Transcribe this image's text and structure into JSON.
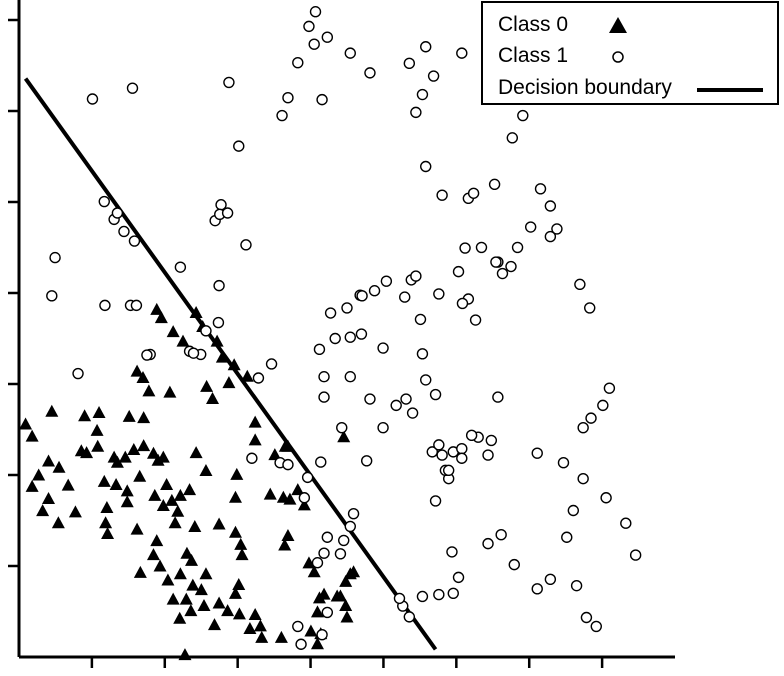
{
  "chart_data": {
    "type": "scatter",
    "title": "",
    "xlabel": "",
    "ylabel": "",
    "xlim": [
      0,
      10
    ],
    "ylim": [
      0,
      10
    ],
    "grid": false,
    "legend_position": "top-right",
    "colors": {
      "markers": "#000000",
      "boundary": "#000000",
      "background": "#ffffff"
    },
    "legend": [
      {
        "label": "Class 0",
        "marker": "filled-triangle"
      },
      {
        "label": "Class 1",
        "marker": "open-circle"
      },
      {
        "label": "Decision boundary",
        "marker": "line"
      }
    ],
    "decision_boundary": {
      "x": [
        0.1,
        6.35
      ],
      "y": [
        9.08,
        0.12
      ]
    },
    "series": [
      {
        "name": "Class 0",
        "points": [
          [
            0.1,
            3.65
          ],
          [
            0.2,
            3.46
          ],
          [
            0.5,
            3.85
          ],
          [
            0.2,
            2.67
          ],
          [
            0.3,
            2.85
          ],
          [
            0.45,
            2.48
          ],
          [
            0.36,
            2.29
          ],
          [
            0.6,
            2.1
          ],
          [
            0.45,
            3.07
          ],
          [
            0.61,
            2.97
          ],
          [
            0.75,
            2.69
          ],
          [
            0.86,
            2.27
          ],
          [
            0.95,
            3.23
          ],
          [
            1.03,
            3.2
          ],
          [
            1.0,
            3.78
          ],
          [
            1.19,
            3.55
          ],
          [
            1.22,
            3.83
          ],
          [
            1.3,
            2.75
          ],
          [
            1.34,
            2.34
          ],
          [
            1.32,
            2.1
          ],
          [
            1.35,
            1.93
          ],
          [
            1.2,
            3.3
          ],
          [
            1.45,
            3.13
          ],
          [
            1.62,
            3.13
          ],
          [
            1.75,
            3.25
          ],
          [
            1.68,
            3.77
          ],
          [
            1.9,
            3.75
          ],
          [
            1.84,
            2.83
          ],
          [
            1.65,
            2.6
          ],
          [
            1.8,
            2.0
          ],
          [
            1.65,
            2.43
          ],
          [
            1.48,
            2.7
          ],
          [
            1.5,
            3.05
          ],
          [
            1.9,
            3.31
          ],
          [
            2.05,
            3.19
          ],
          [
            1.89,
            4.38
          ],
          [
            1.8,
            4.48
          ],
          [
            2.3,
            4.15
          ],
          [
            1.98,
            4.17
          ],
          [
            2.12,
            3.08
          ],
          [
            2.2,
            3.13
          ],
          [
            2.07,
            2.53
          ],
          [
            2.25,
            2.7
          ],
          [
            2.46,
            2.53
          ],
          [
            2.2,
            2.37
          ],
          [
            2.38,
            2.1
          ],
          [
            2.1,
            1.82
          ],
          [
            2.05,
            1.6
          ],
          [
            2.15,
            1.42
          ],
          [
            1.85,
            1.32
          ],
          [
            2.27,
            1.2
          ],
          [
            2.46,
            1.3
          ],
          [
            2.56,
            1.62
          ],
          [
            2.63,
            1.51
          ],
          [
            2.68,
            2.04
          ],
          [
            2.33,
            2.45
          ],
          [
            2.42,
            2.28
          ],
          [
            2.6,
            2.62
          ],
          [
            2.85,
            2.92
          ],
          [
            2.7,
            3.2
          ],
          [
            2.95,
            4.05
          ],
          [
            2.86,
            4.24
          ],
          [
            2.5,
            4.95
          ],
          [
            2.35,
            5.1
          ],
          [
            2.1,
            5.45
          ],
          [
            2.17,
            5.32
          ],
          [
            2.7,
            5.4
          ],
          [
            2.8,
            5.18
          ],
          [
            3.02,
            4.95
          ],
          [
            3.1,
            4.7
          ],
          [
            3.28,
            4.58
          ],
          [
            3.2,
            4.3
          ],
          [
            3.48,
            4.4
          ],
          [
            3.6,
            3.68
          ],
          [
            3.6,
            3.4
          ],
          [
            3.32,
            2.86
          ],
          [
            3.3,
            2.5
          ],
          [
            3.05,
            2.08
          ],
          [
            3.3,
            1.95
          ],
          [
            3.38,
            1.76
          ],
          [
            3.4,
            1.6
          ],
          [
            3.35,
            1.13
          ],
          [
            3.3,
            0.99
          ],
          [
            3.05,
            0.84
          ],
          [
            3.18,
            0.72
          ],
          [
            3.36,
            0.67
          ],
          [
            3.52,
            0.44
          ],
          [
            3.6,
            0.66
          ],
          [
            3.68,
            0.48
          ],
          [
            3.7,
            0.3
          ],
          [
            2.98,
            0.5
          ],
          [
            2.82,
            0.8
          ],
          [
            2.78,
            1.05
          ],
          [
            2.85,
            1.3
          ],
          [
            2.65,
            1.12
          ],
          [
            2.55,
            0.9
          ],
          [
            2.62,
            0.72
          ],
          [
            2.45,
            0.6
          ],
          [
            2.35,
            0.9
          ],
          [
            2.53,
            0.03
          ],
          [
            3.83,
            2.55
          ],
          [
            4.03,
            2.5
          ],
          [
            4.25,
            2.62
          ],
          [
            4.13,
            2.47
          ],
          [
            4.35,
            2.38
          ],
          [
            4.1,
            1.9
          ],
          [
            4.42,
            1.47
          ],
          [
            4.5,
            1.33
          ],
          [
            4.05,
            1.75
          ],
          [
            4.65,
            0.98
          ],
          [
            4.85,
            0.95
          ],
          [
            4.9,
            0.95
          ],
          [
            4.58,
            0.92
          ],
          [
            4.98,
            0.8
          ],
          [
            5.0,
            0.62
          ],
          [
            4.6,
            0.36
          ],
          [
            4.55,
            0.2
          ],
          [
            4.0,
            0.3
          ],
          [
            4.98,
            1.18
          ],
          [
            5.1,
            1.33
          ],
          [
            5.05,
            1.3
          ],
          [
            4.55,
            0.7
          ],
          [
            4.45,
            0.4
          ],
          [
            4.1,
            3.3
          ],
          [
            3.9,
            3.17
          ],
          [
            4.06,
            3.3
          ],
          [
            4.95,
            3.45
          ]
        ]
      },
      {
        "name": "Class 1",
        "points": [
          [
            4.52,
            10.13
          ],
          [
            4.42,
            9.9
          ],
          [
            4.5,
            9.62
          ],
          [
            4.25,
            9.33
          ],
          [
            4.1,
            8.78
          ],
          [
            4.01,
            8.5
          ],
          [
            3.2,
            9.02
          ],
          [
            1.73,
            8.93
          ],
          [
            1.12,
            8.76
          ],
          [
            1.3,
            7.15
          ],
          [
            1.45,
            6.87
          ],
          [
            1.5,
            6.97
          ],
          [
            1.6,
            6.68
          ],
          [
            1.76,
            6.53
          ],
          [
            0.55,
            6.27
          ],
          [
            0.5,
            5.67
          ],
          [
            1.31,
            5.52
          ],
          [
            1.7,
            5.52
          ],
          [
            1.79,
            5.52
          ],
          [
            2.46,
            6.12
          ],
          [
            2.99,
            6.85
          ],
          [
            3.08,
            7.1
          ],
          [
            3.06,
            6.95
          ],
          [
            3.18,
            6.97
          ],
          [
            3.46,
            6.47
          ],
          [
            3.05,
            5.83
          ],
          [
            3.04,
            5.25
          ],
          [
            2.85,
            5.12
          ],
          [
            2.77,
            4.75
          ],
          [
            2.6,
            4.8
          ],
          [
            2.66,
            4.77
          ],
          [
            2.0,
            4.75
          ],
          [
            1.95,
            4.74
          ],
          [
            0.9,
            4.45
          ],
          [
            3.85,
            4.6
          ],
          [
            3.65,
            4.38
          ],
          [
            3.98,
            3.05
          ],
          [
            3.55,
            3.12
          ],
          [
            4.1,
            3.02
          ],
          [
            4.35,
            2.5
          ],
          [
            4.4,
            2.82
          ],
          [
            4.6,
            3.06
          ],
          [
            4.92,
            3.6
          ],
          [
            5.3,
            3.08
          ],
          [
            5.1,
            2.25
          ],
          [
            5.05,
            2.05
          ],
          [
            4.55,
            1.48
          ],
          [
            4.7,
            0.7
          ],
          [
            4.62,
            0.35
          ],
          [
            4.3,
            0.2
          ],
          [
            4.25,
            0.48
          ],
          [
            4.9,
            1.62
          ],
          [
            4.95,
            1.83
          ],
          [
            4.7,
            1.88
          ],
          [
            4.65,
            1.63
          ],
          [
            5.2,
            5.68
          ],
          [
            5.05,
            5.02
          ],
          [
            4.82,
            5.0
          ],
          [
            4.58,
            4.83
          ],
          [
            4.65,
            4.08
          ],
          [
            4.75,
            5.4
          ],
          [
            5.0,
            5.48
          ],
          [
            5.23,
            5.67
          ],
          [
            5.42,
            5.75
          ],
          [
            5.6,
            5.9
          ],
          [
            5.88,
            5.65
          ],
          [
            5.98,
            5.92
          ],
          [
            6.05,
            5.98
          ],
          [
            6.12,
            5.3
          ],
          [
            6.15,
            4.76
          ],
          [
            6.2,
            4.35
          ],
          [
            6.35,
            4.12
          ],
          [
            5.9,
            4.05
          ],
          [
            5.55,
            4.85
          ],
          [
            5.22,
            5.07
          ],
          [
            5.05,
            4.4
          ],
          [
            4.65,
            4.4
          ],
          [
            5.55,
            3.6
          ],
          [
            5.35,
            4.05
          ],
          [
            5.75,
            3.95
          ],
          [
            6.0,
            3.83
          ],
          [
            6.3,
            3.22
          ],
          [
            6.4,
            3.33
          ],
          [
            6.45,
            3.17
          ],
          [
            6.55,
            2.8
          ],
          [
            6.5,
            2.93
          ],
          [
            6.62,
            3.22
          ],
          [
            6.75,
            3.27
          ],
          [
            7.0,
            3.45
          ],
          [
            6.9,
            3.48
          ],
          [
            7.15,
            3.17
          ],
          [
            7.2,
            3.4
          ],
          [
            7.3,
            4.08
          ],
          [
            6.96,
            5.29
          ],
          [
            6.85,
            5.62
          ],
          [
            6.76,
            5.55
          ],
          [
            6.7,
            6.05
          ],
          [
            6.4,
            5.7
          ],
          [
            7.05,
            6.43
          ],
          [
            7.25,
            7.42
          ],
          [
            7.3,
            6.2
          ],
          [
            7.37,
            6.02
          ],
          [
            7.5,
            6.13
          ],
          [
            7.6,
            6.43
          ],
          [
            7.8,
            6.75
          ],
          [
            7.95,
            7.35
          ],
          [
            8.1,
            6.6
          ],
          [
            7.27,
            6.2
          ],
          [
            7.52,
            8.15
          ],
          [
            7.68,
            8.5
          ],
          [
            7.7,
            9.15
          ],
          [
            7.85,
            9.38
          ],
          [
            8.1,
            7.08
          ],
          [
            8.2,
            6.72
          ],
          [
            6.8,
            6.42
          ],
          [
            6.85,
            7.2
          ],
          [
            6.93,
            7.28
          ],
          [
            6.45,
            7.25
          ],
          [
            6.2,
            7.7
          ],
          [
            6.05,
            8.55
          ],
          [
            6.15,
            8.83
          ],
          [
            6.32,
            9.12
          ],
          [
            6.2,
            9.58
          ],
          [
            6.75,
            9.48
          ],
          [
            5.95,
            9.32
          ],
          [
            5.35,
            9.17
          ],
          [
            5.05,
            9.48
          ],
          [
            4.7,
            9.73
          ],
          [
            4.62,
            8.75
          ],
          [
            3.35,
            8.02
          ],
          [
            8.55,
            5.85
          ],
          [
            8.7,
            5.48
          ],
          [
            9.0,
            4.22
          ],
          [
            8.9,
            3.95
          ],
          [
            8.72,
            3.75
          ],
          [
            8.6,
            2.8
          ],
          [
            8.45,
            2.3
          ],
          [
            8.35,
            1.88
          ],
          [
            8.1,
            1.22
          ],
          [
            7.9,
            1.07
          ],
          [
            7.55,
            1.45
          ],
          [
            7.35,
            1.92
          ],
          [
            7.15,
            1.78
          ],
          [
            6.62,
            1.0
          ],
          [
            6.4,
            0.98
          ],
          [
            5.95,
            0.63
          ],
          [
            6.15,
            0.95
          ],
          [
            5.85,
            0.8
          ],
          [
            5.8,
            0.92
          ],
          [
            8.65,
            0.62
          ],
          [
            8.8,
            0.48
          ],
          [
            9.4,
            1.6
          ],
          [
            9.25,
            2.1
          ],
          [
            8.95,
            2.5
          ],
          [
            8.5,
            1.12
          ],
          [
            7.9,
            3.2
          ],
          [
            8.3,
            3.05
          ],
          [
            8.6,
            3.6
          ],
          [
            6.55,
            2.93
          ],
          [
            6.75,
            3.12
          ],
          [
            6.35,
            2.45
          ],
          [
            6.6,
            1.65
          ],
          [
            6.7,
            1.25
          ]
        ]
      }
    ]
  }
}
